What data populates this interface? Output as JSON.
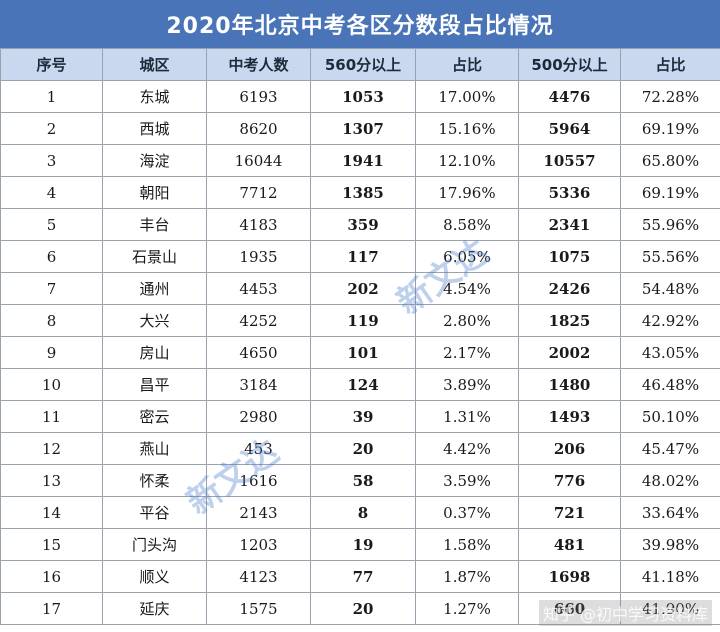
{
  "title": "2020年北京中考各区分数段占比情况",
  "headers": [
    "序号",
    "城区",
    "中考人数",
    "560分以上",
    "占比",
    "500分以上",
    "占比"
  ],
  "rows": [
    [
      "1",
      "东城",
      "6193",
      "1053",
      "17.00%",
      "4476",
      "72.28%"
    ],
    [
      "2",
      "西城",
      "8620",
      "1307",
      "15.16%",
      "5964",
      "69.19%"
    ],
    [
      "3",
      "海淀",
      "16044",
      "1941",
      "12.10%",
      "10557",
      "65.80%"
    ],
    [
      "4",
      "朝阳",
      "7712",
      "1385",
      "17.96%",
      "5336",
      "69.19%"
    ],
    [
      "5",
      "丰台",
      "4183",
      "359",
      "8.58%",
      "2341",
      "55.96%"
    ],
    [
      "6",
      "石景山",
      "1935",
      "117",
      "6.05%",
      "1075",
      "55.56%"
    ],
    [
      "7",
      "通州",
      "4453",
      "202",
      "4.54%",
      "2426",
      "54.48%"
    ],
    [
      "8",
      "大兴",
      "4252",
      "119",
      "2.80%",
      "1825",
      "42.92%"
    ],
    [
      "9",
      "房山",
      "4650",
      "101",
      "2.17%",
      "2002",
      "43.05%"
    ],
    [
      "10",
      "昌平",
      "3184",
      "124",
      "3.89%",
      "1480",
      "46.48%"
    ],
    [
      "11",
      "密云",
      "2980",
      "39",
      "1.31%",
      "1493",
      "50.10%"
    ],
    [
      "12",
      "燕山",
      "453",
      "20",
      "4.42%",
      "206",
      "45.47%"
    ],
    [
      "13",
      "怀柔",
      "1616",
      "58",
      "3.59%",
      "776",
      "48.02%"
    ],
    [
      "14",
      "平谷",
      "2143",
      "8",
      "0.37%",
      "721",
      "33.64%"
    ],
    [
      "15",
      "门头沟",
      "1203",
      "19",
      "1.58%",
      "481",
      "39.98%"
    ],
    [
      "16",
      "顺义",
      "4123",
      "77",
      "1.87%",
      "1698",
      "41.18%"
    ],
    [
      "17",
      "延庆",
      "1575",
      "20",
      "1.27%",
      "660",
      "41.90%"
    ]
  ],
  "watermarks": {
    "logo_text": "新文达",
    "footer": "知乎 @初中学习资料库"
  },
  "colors": {
    "title_bg": "#4a74b8",
    "header_bg": "#c9d8ef"
  }
}
